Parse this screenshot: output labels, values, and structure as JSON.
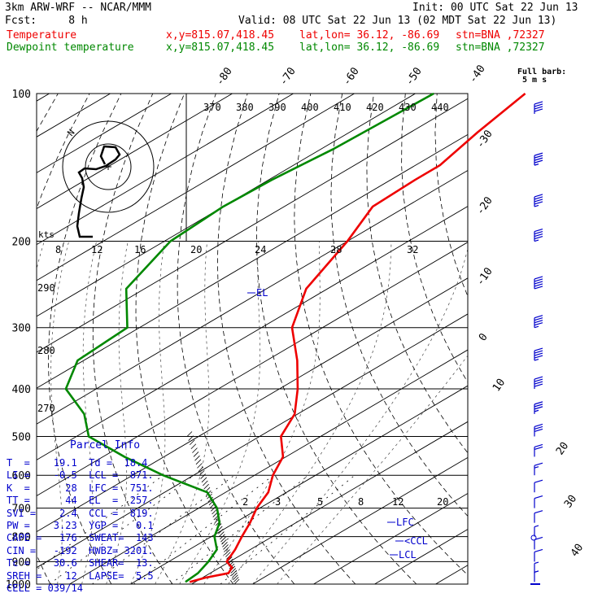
{
  "header": {
    "model": "3km ARW-WRF -- NCAR/MMM",
    "init": "Init: 00 UTC Sat 22 Jun 13",
    "fcst": "Fcst:     8 h",
    "valid": "Valid: 08 UTC Sat 22 Jun 13 (02 MDT Sat 22 Jun 13)",
    "temp_line": {
      "label": "Temperature",
      "xy": "x,y=815.07,418.45",
      "latlon": "lat,lon= 36.12, -86.69",
      "stn": "stn=BNA ,72327"
    },
    "dew_line": {
      "label": "Dewpoint temperature",
      "xy": "x,y=815.07,418.45",
      "latlon": "lat,lon= 36.12, -86.69",
      "stn": "stn=BNA ,72327"
    }
  },
  "barb_legend": {
    "line1": "Full barb:",
    "line2": "5 m s"
  },
  "hodograph": {
    "units": "kts",
    "ring_labels": [
      "N"
    ],
    "ticks": [
      "8",
      "12",
      "16"
    ]
  },
  "parcel_info": {
    "title": "Parcel Info",
    "rows": [
      "T  =    19.1  Td =  18.4",
      "LI =    -0.5  LCL =  871.",
      "K  =      28  LFC =  751.",
      "TT =      44  EL  =  257.",
      "SVI =    2.4  CCL =  819.",
      "PW =    3.23  YGP =   0.1",
      "CAPE =   176  SWEAT=  143",
      "CIN =   -192  HWBZ= 3201.",
      "Tc =    30.6  SHEAR=  13.",
      "SREH =    12  LAPSE=  5.5",
      "CELL = 039/14"
    ]
  },
  "colors": {
    "temperature": "#ee0000",
    "dewpoint": "#008800",
    "annotation": "#0000cc",
    "wind": "#0000cc"
  },
  "chart_data": {
    "type": "line",
    "diagram": "skew-T log-p",
    "pressure_levels_hPa": [
      100,
      200,
      300,
      400,
      500,
      600,
      700,
      800,
      900,
      1000
    ],
    "isotherm_labels_C": [
      "-80",
      "-70",
      "-60",
      "-50",
      "-40",
      "-30",
      "-20",
      "-10",
      "0",
      "10",
      "20",
      "30",
      "40"
    ],
    "theta_labels_K": [
      "370",
      "380",
      "390",
      "400",
      "410",
      "420",
      "430",
      "440"
    ],
    "dry_adiabat_labels_K": [
      "290",
      "280",
      "270"
    ],
    "mixing_ratio_labels_upper": [
      "8",
      "12",
      "16",
      "20",
      "24",
      "28",
      "32"
    ],
    "mixing_ratio_labels_lower": [
      "2",
      "3",
      "5",
      "8",
      "12",
      "20"
    ],
    "level_labels": [
      "EL",
      "LFC",
      "<CCL",
      "LCL"
    ],
    "series": [
      {
        "name": "Temperature",
        "points": [
          [
            100,
            -62
          ],
          [
            120,
            -59
          ],
          [
            140,
            -56
          ],
          [
            150,
            -56
          ],
          [
            170,
            -55.5
          ],
          [
            200,
            -50
          ],
          [
            250,
            -43.5
          ],
          [
            300,
            -35
          ],
          [
            350,
            -25
          ],
          [
            400,
            -17
          ],
          [
            450,
            -10.5
          ],
          [
            500,
            -6.5
          ],
          [
            550,
            -0.5
          ],
          [
            600,
            3
          ],
          [
            650,
            7
          ],
          [
            700,
            9.5
          ],
          [
            750,
            12.5
          ],
          [
            800,
            15
          ],
          [
            850,
            17.5
          ],
          [
            900,
            19.5
          ],
          [
            925,
            22
          ],
          [
            950,
            23
          ],
          [
            970,
            20.5
          ],
          [
            990,
            19.1
          ]
        ]
      },
      {
        "name": "Dewpoint temperature",
        "points": [
          [
            100,
            -77
          ],
          [
            130,
            -78
          ],
          [
            150,
            -79.5
          ],
          [
            170,
            -80
          ],
          [
            200,
            -79
          ],
          [
            250,
            -73
          ],
          [
            300,
            -62
          ],
          [
            350,
            -61
          ],
          [
            400,
            -55
          ],
          [
            450,
            -45
          ],
          [
            500,
            -38
          ],
          [
            550,
            -26.5
          ],
          [
            600,
            -15
          ],
          [
            650,
            -3
          ],
          [
            700,
            3
          ],
          [
            750,
            7.5
          ],
          [
            800,
            10.5
          ],
          [
            850,
            14.5
          ],
          [
            900,
            16.5
          ],
          [
            950,
            18
          ],
          [
            990,
            18.4
          ]
        ]
      }
    ],
    "wind_barbs": [
      [
        110,
        40
      ],
      [
        140,
        45
      ],
      [
        170,
        45
      ],
      [
        200,
        45
      ],
      [
        250,
        50
      ],
      [
        300,
        45
      ],
      [
        350,
        45
      ],
      [
        400,
        40
      ],
      [
        450,
        35
      ],
      [
        500,
        30
      ],
      [
        550,
        20
      ],
      [
        600,
        15
      ],
      [
        650,
        10
      ],
      [
        700,
        10
      ],
      [
        750,
        10
      ],
      [
        800,
        5
      ],
      [
        850,
        10
      ],
      [
        900,
        10
      ],
      [
        950,
        5
      ],
      [
        990,
        5
      ]
    ]
  }
}
